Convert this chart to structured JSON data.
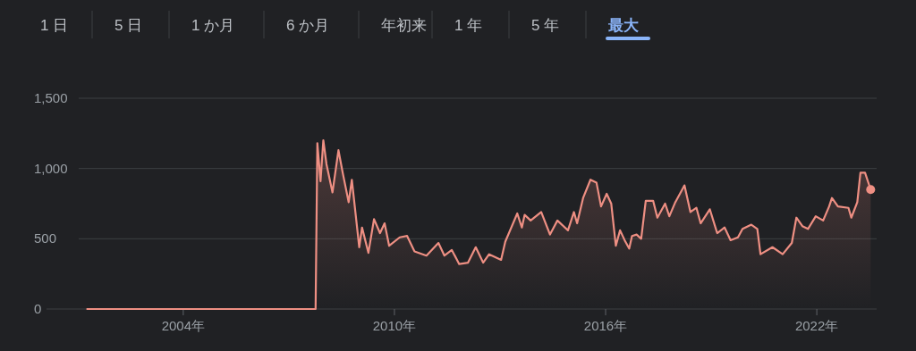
{
  "chart_data": {
    "type": "area",
    "annotations": [
      "1 日",
      "5 日",
      "1 か月",
      "6 か月",
      "年初来",
      "1 年",
      "5 年",
      "最大"
    ],
    "x": [
      2001.25,
      2007.76,
      2007.81,
      2007.9,
      2007.98,
      2008.07,
      2008.24,
      2008.41,
      2008.53,
      2008.7,
      2008.79,
      2009.0,
      2009.08,
      2009.26,
      2009.42,
      2009.59,
      2009.72,
      2009.85,
      2010.15,
      2010.36,
      2010.57,
      2010.91,
      2011.25,
      2011.42,
      2011.63,
      2011.84,
      2012.09,
      2012.31,
      2012.52,
      2012.69,
      2013.03,
      2013.15,
      2013.49,
      2013.62,
      2013.7,
      2013.87,
      2014.17,
      2014.42,
      2014.63,
      2014.93,
      2015.1,
      2015.19,
      2015.36,
      2015.57,
      2015.74,
      2015.87,
      2016.03,
      2016.16,
      2016.29,
      2016.41,
      2016.54,
      2016.67,
      2016.75,
      2016.88,
      2017.01,
      2017.14,
      2017.35,
      2017.47,
      2017.69,
      2017.81,
      2017.98,
      2018.24,
      2018.41,
      2018.58,
      2018.7,
      2018.96,
      2019.17,
      2019.38,
      2019.55,
      2019.76,
      2019.89,
      2020.14,
      2020.31,
      2020.4,
      2020.74,
      2021.03,
      2021.29,
      2021.42,
      2021.59,
      2021.75,
      2021.97,
      2022.18,
      2022.35,
      2022.43,
      2022.6,
      2022.9,
      2022.98,
      2023.15,
      2023.24,
      2023.37,
      2023.53
    ],
    "series": [
      {
        "color": "#ee8f83",
        "values": [
          0,
          0,
          1180,
          910,
          1200,
          1030,
          830,
          1130,
          970,
          760,
          920,
          440,
          580,
          400,
          640,
          540,
          610,
          450,
          510,
          520,
          410,
          380,
          470,
          380,
          420,
          320,
          330,
          440,
          330,
          390,
          350,
          480,
          680,
          580,
          670,
          630,
          690,
          530,
          630,
          560,
          690,
          610,
          790,
          920,
          900,
          730,
          820,
          750,
          450,
          560,
          490,
          430,
          520,
          530,
          500,
          770,
          770,
          650,
          750,
          660,
          760,
          880,
          690,
          720,
          610,
          710,
          540,
          580,
          490,
          510,
          570,
          600,
          570,
          390,
          440,
          390,
          470,
          650,
          590,
          570,
          660,
          630,
          730,
          790,
          730,
          720,
          650,
          760,
          970,
          970,
          850
        ]
      }
    ],
    "xlim": [
      2001.03,
      2023.7
    ],
    "xticks": [
      {
        "value": 2004,
        "label": "2004年"
      },
      {
        "value": 2010,
        "label": "2010年"
      },
      {
        "value": 2016,
        "label": "2016年"
      },
      {
        "value": 2022,
        "label": "2022年"
      }
    ],
    "ylim": [
      0,
      1500
    ],
    "yticks": [
      {
        "value": 0,
        "label": "0"
      },
      {
        "value": 500,
        "label": "500"
      },
      {
        "value": 1000,
        "label": "1,000"
      },
      {
        "value": 1500,
        "label": "1,500"
      }
    ],
    "grid": "y"
  }
}
